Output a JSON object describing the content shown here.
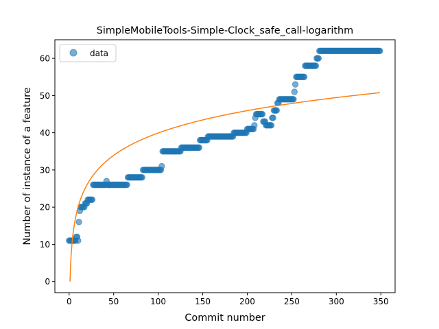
{
  "chart_data": {
    "type": "scatter",
    "title": "SimpleMobileTools-Simple-Clock_safe_call-logarithm",
    "xlabel": "Commit number",
    "ylabel": "Number of instance of a feature",
    "xlim": [
      -16,
      366
    ],
    "ylim": [
      -3,
      65
    ],
    "xticks": [
      0,
      50,
      100,
      150,
      200,
      250,
      300,
      350
    ],
    "yticks": [
      0,
      10,
      20,
      30,
      40,
      50,
      60
    ],
    "legend": {
      "position": "top-left",
      "label": "data"
    },
    "grid": false,
    "colors": {
      "data": "#1f77b4",
      "fit": "#ff7f0e"
    },
    "steps": [
      [
        0,
        11
      ],
      [
        8,
        12
      ],
      [
        10,
        11
      ],
      [
        11,
        16
      ],
      [
        12,
        19
      ],
      [
        13,
        20
      ],
      [
        18,
        21
      ],
      [
        21,
        22
      ],
      [
        27,
        26
      ],
      [
        42,
        27
      ],
      [
        43,
        26
      ],
      [
        64,
        26
      ],
      [
        66,
        28
      ],
      [
        83,
        30
      ],
      [
        104,
        31
      ],
      [
        105,
        35
      ],
      [
        126,
        36
      ],
      [
        147,
        38
      ],
      [
        156,
        39
      ],
      [
        185,
        40
      ],
      [
        200,
        41
      ],
      [
        208,
        42
      ],
      [
        209,
        44
      ],
      [
        210,
        45
      ],
      [
        218,
        43
      ],
      [
        221,
        42
      ],
      [
        228,
        44
      ],
      [
        230,
        46
      ],
      [
        234,
        48
      ],
      [
        236,
        49
      ],
      [
        253,
        51
      ],
      [
        254,
        53
      ],
      [
        255,
        55
      ],
      [
        265,
        58
      ],
      [
        278,
        60
      ],
      [
        281,
        62
      ],
      [
        349,
        62
      ]
    ],
    "series": [
      {
        "name": "data",
        "kind": "scatter"
      },
      {
        "kind": "line",
        "model": "a*ln(x)+b",
        "a": 8.67,
        "b": 0.0,
        "x_range": [
          1,
          349
        ]
      }
    ]
  }
}
